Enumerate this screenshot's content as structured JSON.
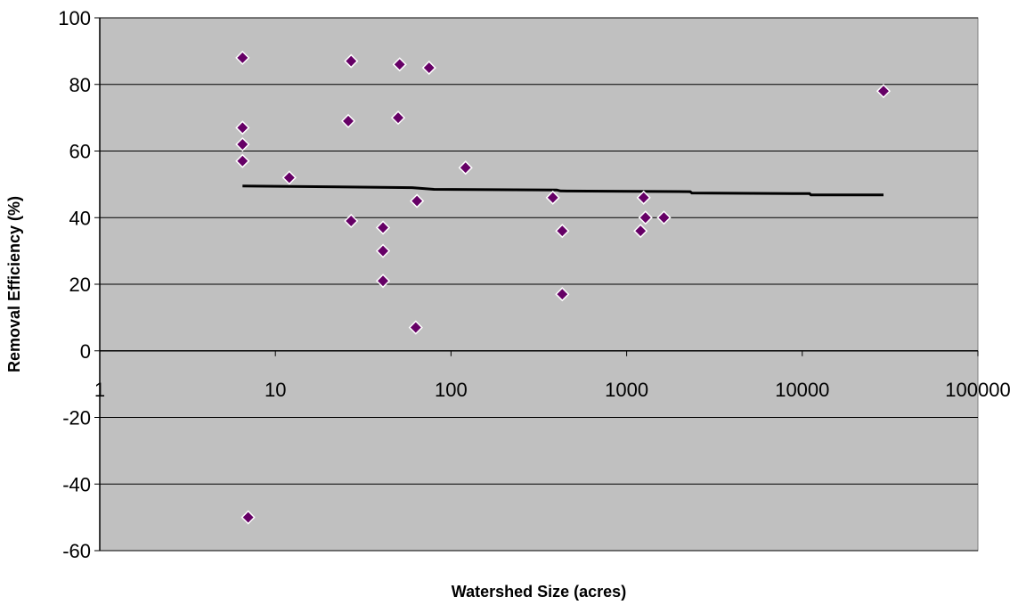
{
  "chart_data": {
    "type": "scatter",
    "title": "",
    "xlabel": "Watershed Size (acres)",
    "ylabel": "Removal Efficiency (%)",
    "x_scale": "log",
    "xlim": [
      1,
      100000
    ],
    "ylim": [
      -60,
      100
    ],
    "x_ticks": [
      "1",
      "10",
      "100",
      "1000",
      "10000",
      "100000"
    ],
    "y_ticks": [
      "100",
      "80",
      "60",
      "40",
      "20",
      "0",
      "-20",
      "-40",
      "-60"
    ],
    "grid": "horizontal",
    "plot_background": "#c0c0c0",
    "marker_color": "#660066",
    "marker_edge": "#ffffff",
    "trend_color": "#000000",
    "points": [
      {
        "x": 6.5,
        "y": 88
      },
      {
        "x": 6.5,
        "y": 67
      },
      {
        "x": 6.5,
        "y": 62
      },
      {
        "x": 6.5,
        "y": 57
      },
      {
        "x": 7,
        "y": -50
      },
      {
        "x": 12,
        "y": 52
      },
      {
        "x": 27,
        "y": 87
      },
      {
        "x": 26,
        "y": 69
      },
      {
        "x": 27,
        "y": 39
      },
      {
        "x": 41,
        "y": 37
      },
      {
        "x": 41,
        "y": 30
      },
      {
        "x": 41,
        "y": 21
      },
      {
        "x": 51,
        "y": 86
      },
      {
        "x": 50,
        "y": 70
      },
      {
        "x": 75,
        "y": 85
      },
      {
        "x": 64,
        "y": 45
      },
      {
        "x": 63,
        "y": 7
      },
      {
        "x": 121,
        "y": 55
      },
      {
        "x": 380,
        "y": 46
      },
      {
        "x": 430,
        "y": 36
      },
      {
        "x": 430,
        "y": 17
      },
      {
        "x": 1250,
        "y": 46
      },
      {
        "x": 1200,
        "y": 36
      },
      {
        "x": 1280,
        "y": 40
      },
      {
        "x": 1630,
        "y": 40
      },
      {
        "x": 29000,
        "y": 78
      }
    ],
    "trend_line": [
      {
        "x": 6.5,
        "y": 49.5
      },
      {
        "x": 60,
        "y": 49
      },
      {
        "x": 80,
        "y": 48.5
      },
      {
        "x": 400,
        "y": 48.3
      },
      {
        "x": 420,
        "y": 48
      },
      {
        "x": 2300,
        "y": 47.8
      },
      {
        "x": 2350,
        "y": 47.4
      },
      {
        "x": 11000,
        "y": 47.2
      },
      {
        "x": 11200,
        "y": 46.8
      },
      {
        "x": 29000,
        "y": 46.8
      }
    ]
  }
}
